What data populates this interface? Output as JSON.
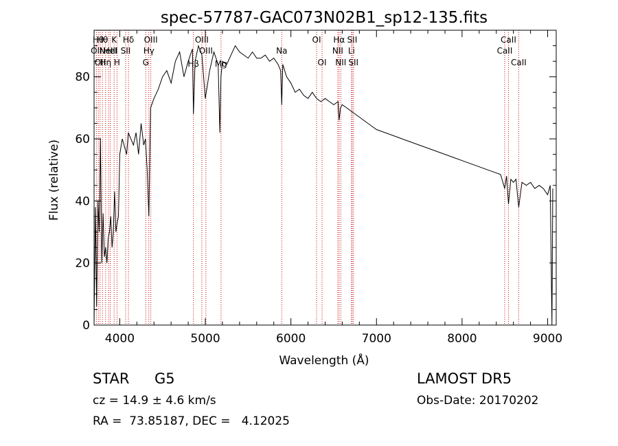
{
  "chart_data": {
    "type": "line",
    "title": "spec-57787-GAC073N02B1_sp12-135.fits",
    "xlabel": "Wavelength (Å)",
    "ylabel": "Flux (relative)",
    "xlim": [
      3700,
      9100
    ],
    "ylim": [
      0,
      95
    ],
    "x_ticks": [
      4000,
      5000,
      6000,
      7000,
      8000,
      9000
    ],
    "y_ticks": [
      0,
      20,
      40,
      60,
      80
    ],
    "grid": false,
    "line_color": "#000000",
    "marker_line_color": "#cc0000",
    "series": [
      {
        "x": [
          3700,
          3715,
          3730,
          3745,
          3760,
          3775,
          3790,
          3805,
          3820,
          3835,
          3850,
          3865,
          3880,
          3895,
          3910,
          3925,
          3940,
          3955,
          3970,
          3985,
          4000,
          4030,
          4060,
          4080,
          4100,
          4130,
          4160,
          4190,
          4220,
          4250,
          4280,
          4300,
          4320,
          4340,
          4360,
          4400,
          4450,
          4500,
          4550,
          4600,
          4650,
          4700,
          4750,
          4800,
          4850,
          4861,
          4880,
          4920,
          4960,
          5000,
          5050,
          5100,
          5150,
          5170,
          5183,
          5200,
          5250,
          5300,
          5350,
          5400,
          5450,
          5500,
          5550,
          5600,
          5650,
          5700,
          5750,
          5800,
          5850,
          5880,
          5893,
          5905,
          5950,
          6000,
          6050,
          6100,
          6150,
          6200,
          6250,
          6300,
          6350,
          6400,
          6450,
          6500,
          6550,
          6563,
          6580,
          6600,
          6650,
          6700,
          6750,
          6800,
          6850,
          6900,
          6950,
          7000,
          7100,
          7200,
          7300,
          7400,
          7500,
          7600,
          7700,
          7800,
          7900,
          8000,
          8100,
          8200,
          8300,
          8400,
          8450,
          8498,
          8520,
          8542,
          8570,
          8600,
          8630,
          8662,
          8700,
          8750,
          8800,
          8850,
          8900,
          8950,
          9000,
          9030,
          9050,
          9060
        ],
        "y": [
          0,
          38,
          6,
          40,
          30,
          60,
          20,
          36,
          22,
          25,
          20,
          28,
          30,
          35,
          25,
          30,
          43,
          30,
          33,
          35,
          55,
          60,
          57,
          55,
          62,
          60,
          58,
          62,
          55,
          65,
          58,
          60,
          50,
          35,
          70,
          73,
          76,
          80,
          82,
          78,
          85,
          88,
          80,
          85,
          89,
          68,
          85,
          90,
          87,
          73,
          82,
          88,
          84,
          62,
          80,
          85,
          84,
          87,
          90,
          88,
          87,
          86,
          88,
          86,
          86,
          87,
          85,
          86,
          84,
          82,
          71,
          84,
          80,
          78,
          75,
          76,
          74,
          73,
          75,
          73,
          72,
          73,
          72,
          71,
          72,
          66,
          70,
          71,
          70,
          69,
          68,
          67,
          66,
          65,
          64,
          63,
          62,
          61,
          60,
          59,
          58,
          57,
          56,
          55,
          54,
          53,
          52,
          51,
          50,
          49,
          48.5,
          44,
          48,
          39,
          47,
          46,
          47,
          38,
          46,
          45,
          46,
          44,
          45,
          44,
          42,
          45,
          0,
          44
        ]
      }
    ],
    "line_markers": [
      {
        "wavelength": 3727,
        "label": "OII",
        "row": 2
      },
      {
        "wavelength": 3750,
        "label": "Hθ",
        "row": 1
      },
      {
        "wavelength": 3770,
        "label": "OII",
        "row": 3
      },
      {
        "wavelength": 3798,
        "label": "Hθ",
        "row": 1
      },
      {
        "wavelength": 3835,
        "label": "Hη",
        "row": 3
      },
      {
        "wavelength": 3869,
        "label": "NeIII",
        "row": 2
      },
      {
        "wavelength": 3889,
        "label": "HeI",
        "row": 2
      },
      {
        "wavelength": 3934,
        "label": "K",
        "row": 1
      },
      {
        "wavelength": 3968,
        "label": "H",
        "row": 3
      },
      {
        "wavelength": 4069,
        "label": "SII",
        "row": 2
      },
      {
        "wavelength": 4102,
        "label": "Hδ",
        "row": 1
      },
      {
        "wavelength": 4304,
        "label": "G",
        "row": 3
      },
      {
        "wavelength": 4340,
        "label": "Hγ",
        "row": 2
      },
      {
        "wavelength": 4363,
        "label": "OIII",
        "row": 1
      },
      {
        "wavelength": 4861,
        "label": "Hβ",
        "row": 4
      },
      {
        "wavelength": 4959,
        "label": "OIII",
        "row": 1
      },
      {
        "wavelength": 5007,
        "label": "OIII",
        "row": 2
      },
      {
        "wavelength": 5183,
        "label": "Mg",
        "row": 4
      },
      {
        "wavelength": 5893,
        "label": "Na",
        "row": 2
      },
      {
        "wavelength": 6300,
        "label": "OI",
        "row": 1
      },
      {
        "wavelength": 6364,
        "label": "OI",
        "row": 3
      },
      {
        "wavelength": 6548,
        "label": "NII",
        "row": 2
      },
      {
        "wavelength": 6563,
        "label": "Hα",
        "row": 1
      },
      {
        "wavelength": 6583,
        "label": "NII",
        "row": 3
      },
      {
        "wavelength": 6708,
        "label": "Li",
        "row": 2
      },
      {
        "wavelength": 6716,
        "label": "SII",
        "row": 1
      },
      {
        "wavelength": 6731,
        "label": "SII",
        "row": 3
      },
      {
        "wavelength": 8498,
        "label": "CaII",
        "row": 2
      },
      {
        "wavelength": 8542,
        "label": "CaII",
        "row": 1
      },
      {
        "wavelength": 8662,
        "label": "CaII",
        "row": 3
      }
    ]
  },
  "info": {
    "object_class": "STAR",
    "subclass": "G5",
    "survey": "LAMOST DR5",
    "redshift": "cz = 14.9 ± 4.6 km/s",
    "obs_date": "Obs-Date: 20170202",
    "coords": "RA =  73.85187, DEC =   4.12025"
  }
}
